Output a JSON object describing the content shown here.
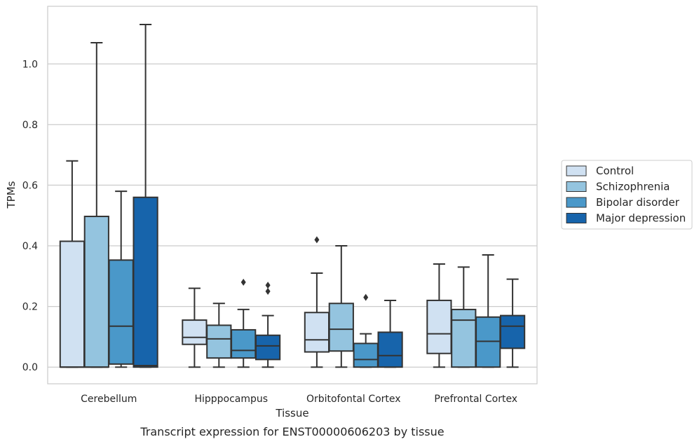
{
  "chart_data": {
    "type": "box",
    "title": "",
    "caption": "Transcript expression for ENST00000606203 by tissue",
    "xlabel": "Tissue",
    "ylabel": "TPMs",
    "ylim": [
      -0.055,
      1.19
    ],
    "yticks": [
      0.0,
      0.2,
      0.4,
      0.6,
      0.8,
      1.0
    ],
    "ytick_labels": [
      "0.0",
      "0.2",
      "0.4",
      "0.6",
      "0.8",
      "1.0"
    ],
    "grid": true,
    "legend_position": "right",
    "categories": [
      "Cerebellum",
      "Hipppocampus",
      "Orbitofontal Cortex",
      "Prefrontal Cortex"
    ],
    "series": [
      {
        "name": "Control",
        "color": "#d0e1f2",
        "boxes": [
          {
            "min": 0.0,
            "q1": 0.0,
            "median": 0.0,
            "q3": 0.415,
            "max": 0.68,
            "outliers": []
          },
          {
            "min": 0.0,
            "q1": 0.075,
            "median": 0.098,
            "q3": 0.155,
            "max": 0.26,
            "outliers": []
          },
          {
            "min": 0.0,
            "q1": 0.05,
            "median": 0.09,
            "q3": 0.18,
            "max": 0.31,
            "outliers": [
              0.42
            ]
          },
          {
            "min": 0.0,
            "q1": 0.045,
            "median": 0.11,
            "q3": 0.22,
            "max": 0.34,
            "outliers": []
          }
        ]
      },
      {
        "name": "Schizophrenia",
        "color": "#94c4df",
        "boxes": [
          {
            "min": 0.0,
            "q1": 0.0,
            "median": 0.0,
            "q3": 0.497,
            "max": 1.07,
            "outliers": []
          },
          {
            "min": 0.0,
            "q1": 0.03,
            "median": 0.093,
            "q3": 0.138,
            "max": 0.21,
            "outliers": []
          },
          {
            "min": 0.0,
            "q1": 0.053,
            "median": 0.125,
            "q3": 0.21,
            "max": 0.4,
            "outliers": []
          },
          {
            "min": 0.0,
            "q1": 0.0,
            "median": 0.155,
            "q3": 0.19,
            "max": 0.33,
            "outliers": []
          }
        ]
      },
      {
        "name": "Bipolar disorder",
        "color": "#4a98c9",
        "boxes": [
          {
            "min": 0.0,
            "q1": 0.01,
            "median": 0.135,
            "q3": 0.353,
            "max": 0.58,
            "outliers": []
          },
          {
            "min": 0.0,
            "q1": 0.03,
            "median": 0.055,
            "q3": 0.123,
            "max": 0.19,
            "outliers": [
              0.28
            ]
          },
          {
            "min": 0.0,
            "q1": 0.0,
            "median": 0.025,
            "q3": 0.078,
            "max": 0.11,
            "outliers": [
              0.23
            ]
          },
          {
            "min": 0.0,
            "q1": 0.0,
            "median": 0.085,
            "q3": 0.165,
            "max": 0.37,
            "outliers": []
          }
        ]
      },
      {
        "name": "Major depression",
        "color": "#1764ab",
        "boxes": [
          {
            "min": 0.0,
            "q1": 0.0,
            "median": 0.005,
            "q3": 0.56,
            "max": 1.13,
            "outliers": []
          },
          {
            "min": 0.0,
            "q1": 0.025,
            "median": 0.07,
            "q3": 0.105,
            "max": 0.17,
            "outliers": [
              0.25,
              0.27
            ]
          },
          {
            "min": 0.0,
            "q1": 0.0,
            "median": 0.038,
            "q3": 0.115,
            "max": 0.22,
            "outliers": []
          },
          {
            "min": 0.0,
            "q1": 0.062,
            "median": 0.135,
            "q3": 0.17,
            "max": 0.29,
            "outliers": []
          }
        ]
      }
    ]
  }
}
